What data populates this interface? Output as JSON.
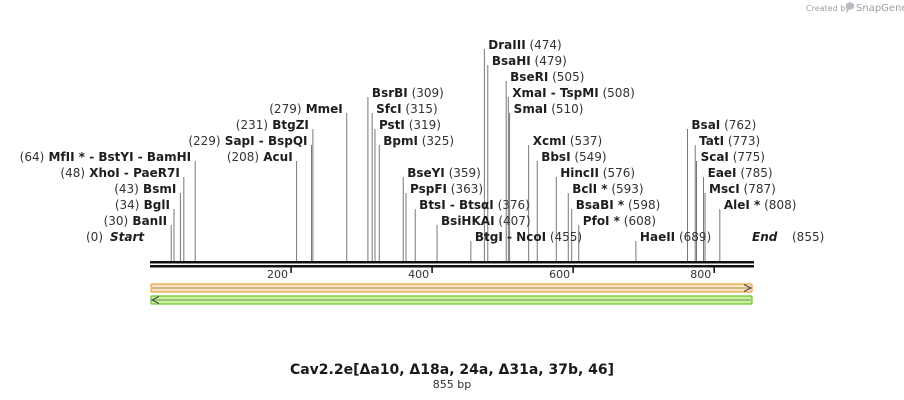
{
  "credit": {
    "prefix": "Created by",
    "brand": "SnapGene"
  },
  "sequence": {
    "name": "Cav2.2e[Δa10, Δ18a, 24a, Δ31a, 37b, 46]",
    "length_label": "855 bp",
    "length": 855
  },
  "ruler": {
    "ticks": [
      200,
      400,
      600,
      800
    ]
  },
  "colors": {
    "feature_top_fill": "#fbe3bf",
    "feature_top_edge": "#e8a23c",
    "feature_bottom_fill": "#c9f0a0",
    "feature_bottom_edge": "#6cc62c",
    "leader": "#555555"
  },
  "sites": [
    {
      "row": 0,
      "pos": 474,
      "name": "DraIII",
      "pos_label": "(474)",
      "star": "",
      "link": ""
    },
    {
      "row": 1,
      "pos": 479,
      "name": "BsaHI",
      "pos_label": "(479)",
      "star": "",
      "link": ""
    },
    {
      "row": 2,
      "pos": 505,
      "name": "BseRI",
      "pos_label": "(505)",
      "star": "",
      "link": ""
    },
    {
      "row": 3,
      "pos": 508,
      "name": "XmaI",
      "pos_label": "(508)",
      "star": "",
      "link": "- TspMI"
    },
    {
      "row": 4,
      "pos": 510,
      "name": "SmaI",
      "pos_label": "(510)",
      "star": "",
      "link": ""
    },
    {
      "row": 4,
      "pos": 279,
      "name": "MmeI",
      "pos_label": "(279)",
      "star": "",
      "link": "",
      "align": "left"
    },
    {
      "row": 3,
      "pos": 309,
      "name": "BsrBI",
      "pos_label": "(309)",
      "star": "",
      "link": ""
    },
    {
      "row": 4,
      "pos": 315,
      "name": "SfcI",
      "pos_label": "(315)",
      "star": "",
      "link": ""
    },
    {
      "row": 5,
      "pos": 319,
      "name": "PstI",
      "pos_label": "(319)",
      "star": "",
      "link": ""
    },
    {
      "row": 6,
      "pos": 325,
      "name": "BpmI",
      "pos_label": "(325)",
      "star": "",
      "link": ""
    },
    {
      "row": 5,
      "pos": 231,
      "name": "BtgZI",
      "pos_label": "(231)",
      "star": "",
      "link": "",
      "align": "left"
    },
    {
      "row": 6,
      "pos": 229,
      "name": "SapI",
      "pos_label": "(229)",
      "star": "",
      "link": "- BspQI",
      "align": "left"
    },
    {
      "row": 7,
      "pos": 208,
      "name": "AcuI",
      "pos_label": "(208)",
      "star": "",
      "link": "",
      "align": "left"
    },
    {
      "row": 7,
      "pos": 64,
      "name": "MfII",
      "pos_label": "(64)",
      "star": "*",
      "link": "- BstYI  - BamHI",
      "align": "left"
    },
    {
      "row": 8,
      "pos": 48,
      "name": "XhoI",
      "pos_label": "(48)",
      "star": "",
      "link": "- PaeR7I",
      "align": "left"
    },
    {
      "row": 9,
      "pos": 43,
      "name": "BsmI",
      "pos_label": "(43)",
      "star": "",
      "link": "",
      "align": "left"
    },
    {
      "row": 10,
      "pos": 34,
      "name": "BglI",
      "pos_label": "(34)",
      "star": "",
      "link": "",
      "align": "left"
    },
    {
      "row": 11,
      "pos": 30,
      "name": "BanII",
      "pos_label": "(30)",
      "star": "",
      "link": "",
      "align": "left"
    },
    {
      "row": 6,
      "pos": 537,
      "name": "XcmI",
      "pos_label": "(537)",
      "star": "",
      "link": ""
    },
    {
      "row": 7,
      "pos": 549,
      "name": "BbsI",
      "pos_label": "(549)",
      "star": "",
      "link": ""
    },
    {
      "row": 8,
      "pos": 359,
      "name": "BseYI",
      "pos_label": "(359)",
      "star": "",
      "link": ""
    },
    {
      "row": 9,
      "pos": 363,
      "name": "PspFI",
      "pos_label": "(363)",
      "star": "",
      "link": ""
    },
    {
      "row": 10,
      "pos": 376,
      "name": "BtsI",
      "pos_label": "(376)",
      "star": "",
      "link": "- BtsαI"
    },
    {
      "row": 11,
      "pos": 407,
      "name": "BsiHKAI",
      "pos_label": "(407)",
      "star": "",
      "link": ""
    },
    {
      "row": 8,
      "pos": 576,
      "name": "HincII",
      "pos_label": "(576)",
      "star": "",
      "link": ""
    },
    {
      "row": 9,
      "pos": 593,
      "name": "BclI",
      "pos_label": "(593)",
      "star": "*",
      "link": ""
    },
    {
      "row": 10,
      "pos": 598,
      "name": "BsaBI",
      "pos_label": "(598)",
      "star": "*",
      "link": ""
    },
    {
      "row": 11,
      "pos": 608,
      "name": "PfoI",
      "pos_label": "(608)",
      "star": "*",
      "link": ""
    },
    {
      "row": 12,
      "pos": 455,
      "name": "BtgI",
      "pos_label": "(455)",
      "star": "",
      "link": "- NcoI"
    },
    {
      "row": 12,
      "pos": 689,
      "name": "HaeII",
      "pos_label": "(689)",
      "star": "",
      "link": ""
    },
    {
      "row": 5,
      "pos": 762,
      "name": "BsaI",
      "pos_label": "(762)",
      "star": "",
      "link": ""
    },
    {
      "row": 6,
      "pos": 773,
      "name": "TatI",
      "pos_label": "(773)",
      "star": "",
      "link": ""
    },
    {
      "row": 7,
      "pos": 775,
      "name": "ScaI",
      "pos_label": "(775)",
      "star": "",
      "link": ""
    },
    {
      "row": 8,
      "pos": 785,
      "name": "EaeI",
      "pos_label": "(785)",
      "star": "",
      "link": ""
    },
    {
      "row": 9,
      "pos": 787,
      "name": "MscI",
      "pos_label": "(787)",
      "star": "",
      "link": ""
    },
    {
      "row": 10,
      "pos": 808,
      "name": "AleI",
      "pos_label": "(808)",
      "star": "*",
      "link": ""
    }
  ],
  "ends": {
    "start_label": "Start",
    "start_pos": "(0)",
    "end_label": "End",
    "end_pos": "(855)"
  }
}
